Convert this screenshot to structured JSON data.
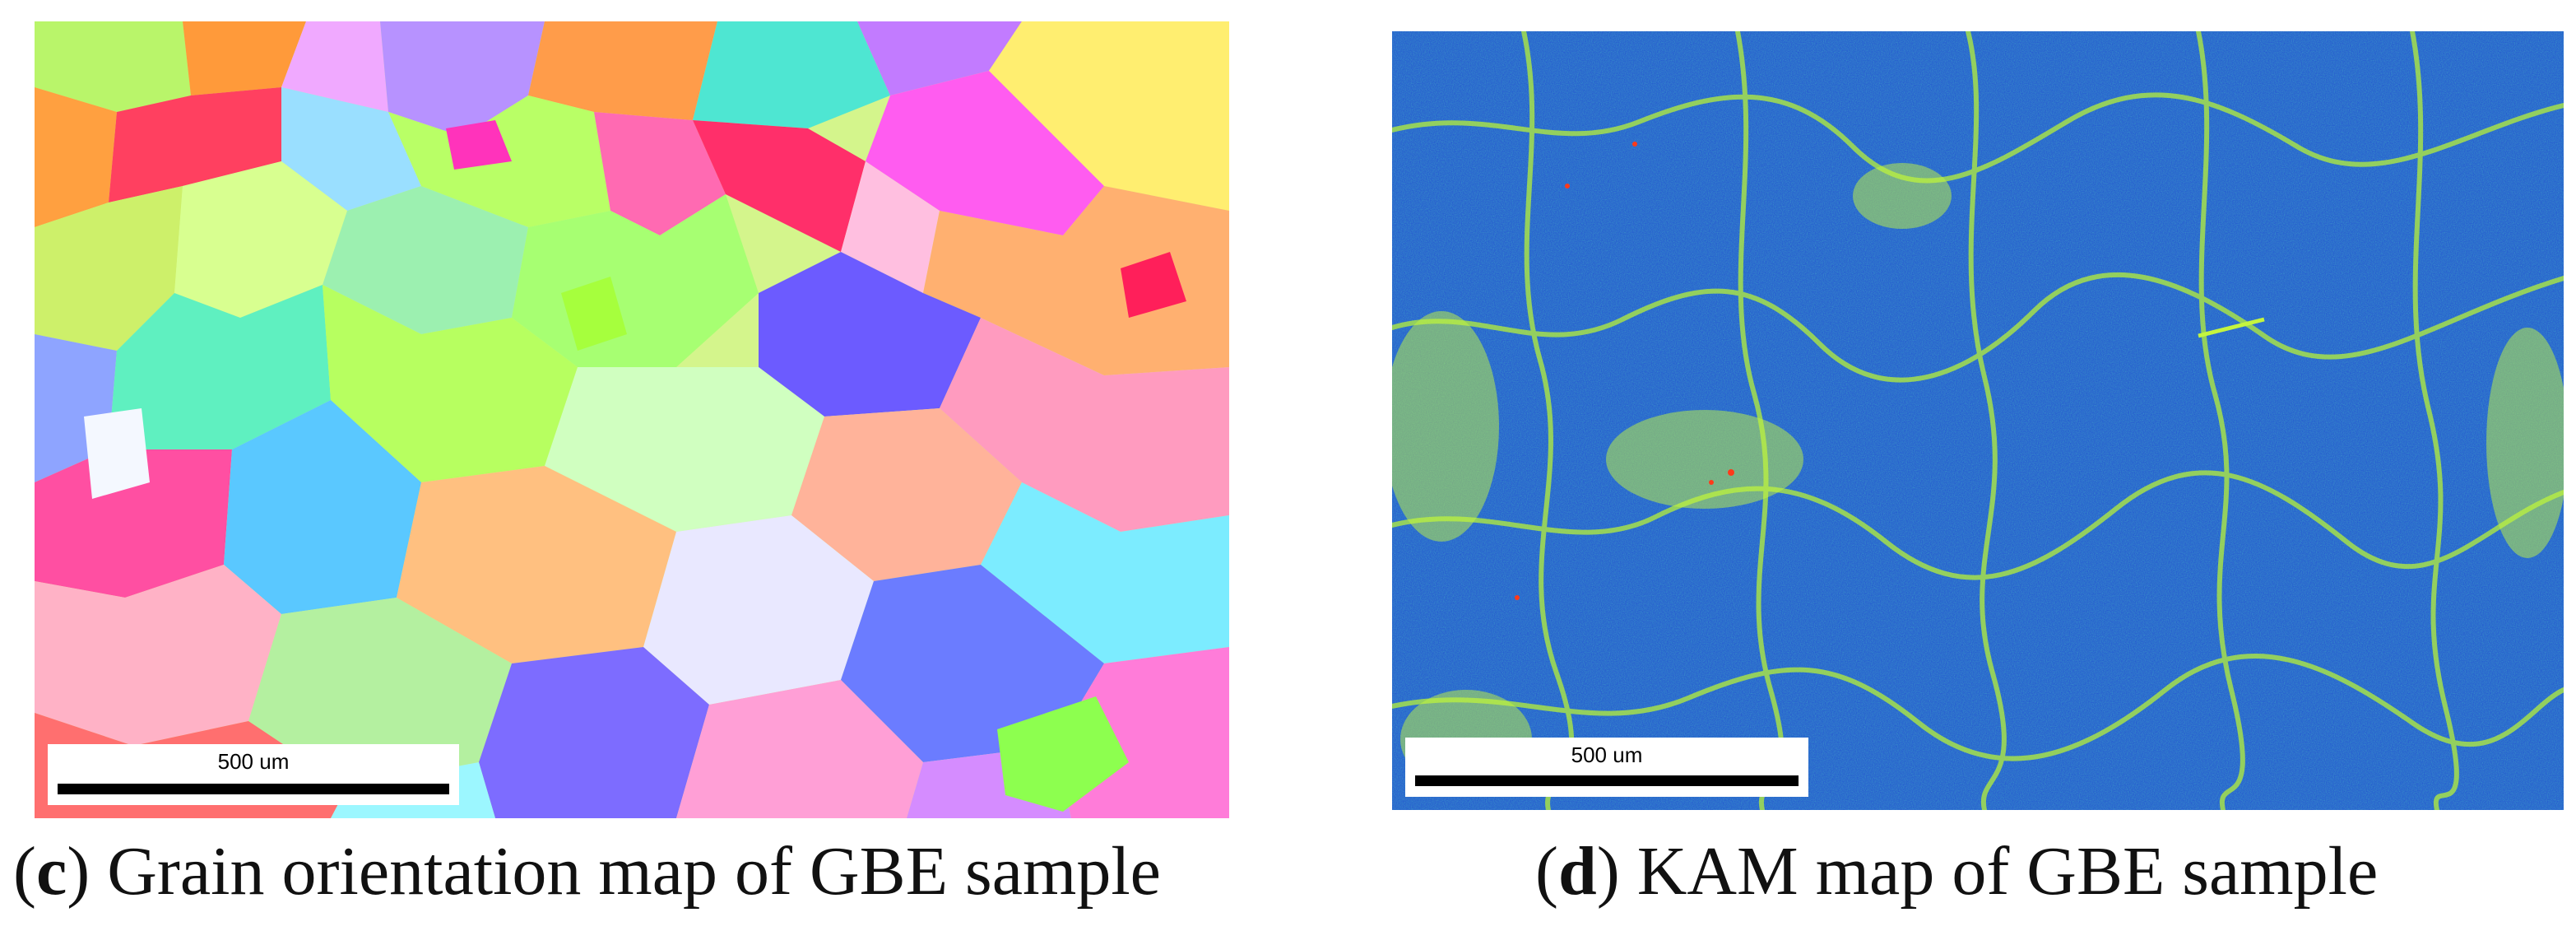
{
  "panels": [
    {
      "id": "c",
      "letter": "c",
      "caption": "Grain orientation map of GBE sample",
      "scale_label": "500 um"
    },
    {
      "id": "d",
      "letter": "d",
      "caption": "KAM map of GBE sample",
      "scale_label": "500 um"
    }
  ],
  "colors": {
    "kam_background": "#1f4fd0",
    "kam_boundary": "#b6f03a",
    "kam_high": "#ff3a1a"
  }
}
